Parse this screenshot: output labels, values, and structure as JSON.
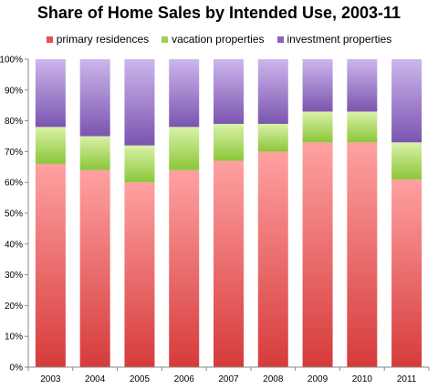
{
  "chart_data": {
    "type": "bar",
    "stacked": true,
    "title": "Share of Home Sales by Intended Use, 2003-11",
    "xlabel": "",
    "ylabel": "",
    "categories": [
      "2003",
      "2004",
      "2005",
      "2006",
      "2007",
      "2008",
      "2009",
      "2010",
      "2011"
    ],
    "series": [
      {
        "name": "primary residences",
        "values": [
          66,
          64,
          60,
          64,
          67,
          70,
          73,
          73,
          61
        ],
        "color": "#e8504f"
      },
      {
        "name": "vacation properties",
        "values": [
          12,
          11,
          12,
          14,
          12,
          9,
          10,
          10,
          12
        ],
        "color": "#a3d14a"
      },
      {
        "name": "investment properties",
        "values": [
          22,
          25,
          28,
          22,
          21,
          21,
          17,
          17,
          27
        ],
        "color": "#8a63b8"
      }
    ],
    "ylim": [
      0,
      100
    ],
    "yticks": [
      "0%",
      "10%",
      "20%",
      "30%",
      "40%",
      "50%",
      "60%",
      "70%",
      "80%",
      "90%",
      "100%"
    ],
    "grid": false,
    "legend_position": "top"
  }
}
